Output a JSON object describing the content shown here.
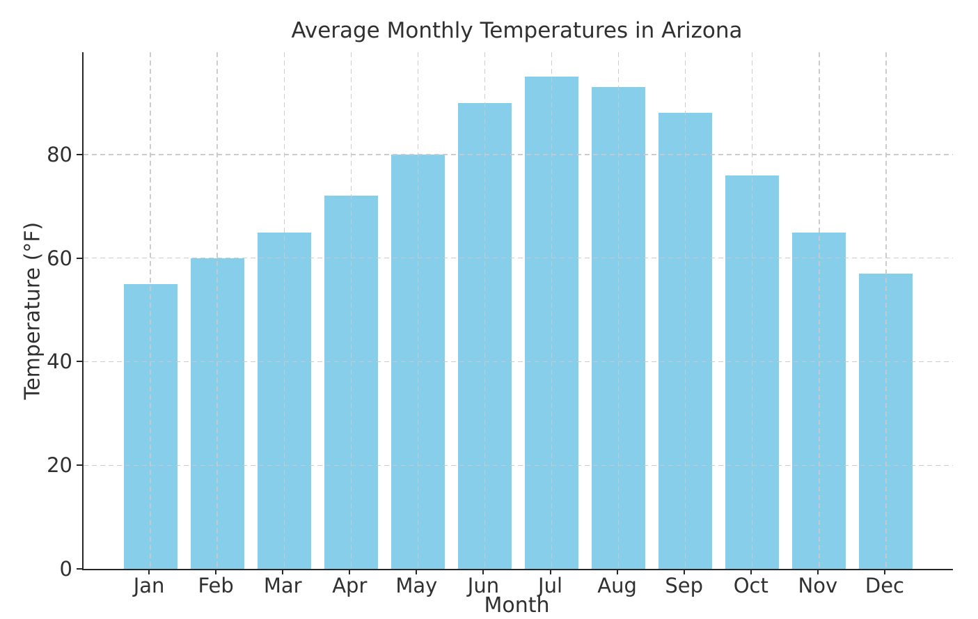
{
  "chart_data": {
    "type": "bar",
    "title": "Average Monthly Temperatures in Arizona",
    "xlabel": "Month",
    "ylabel": "Temperature (°F)",
    "categories": [
      "Jan",
      "Feb",
      "Mar",
      "Apr",
      "May",
      "Jun",
      "Jul",
      "Aug",
      "Sep",
      "Oct",
      "Nov",
      "Dec"
    ],
    "values": [
      55,
      60,
      65,
      72,
      80,
      90,
      95,
      93,
      88,
      76,
      65,
      57
    ],
    "yticks": [
      0,
      20,
      40,
      60,
      80
    ],
    "ylim": [
      0,
      99.75
    ],
    "grid": true,
    "grid_style": "dashed",
    "grid_above_bars": true,
    "legend": "none",
    "spines": [
      "left",
      "bottom"
    ],
    "bar_width_fraction": 0.8,
    "colors": {
      "bar": "#87CEEB",
      "axis": "#262626",
      "text": "#303030",
      "grid": "#c9c9c9",
      "background": "#ffffff"
    }
  }
}
